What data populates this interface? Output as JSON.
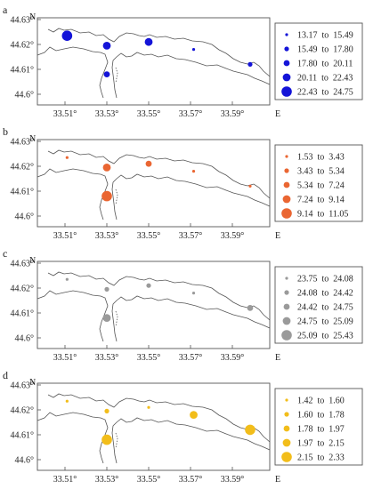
{
  "axes": {
    "north_label": "N",
    "east_label": "E",
    "x_ticks": [
      "33.51°",
      "33.53°",
      "33.55°",
      "33.57°",
      "33.59°"
    ],
    "y_ticks": [
      "44.63°",
      "44.62°",
      "44.61°",
      "44.6°"
    ]
  },
  "stations": [
    {
      "id": "s1",
      "lon": 33.511,
      "lat": 44.6235
    },
    {
      "id": "s2",
      "lon": 33.53,
      "lat": 44.6195
    },
    {
      "id": "s3",
      "lon": 33.53,
      "lat": 44.608
    },
    {
      "id": "s4",
      "lon": 33.55,
      "lat": 44.621
    },
    {
      "id": "s5",
      "lon": 33.5715,
      "lat": 44.618
    },
    {
      "id": "s6",
      "lon": 33.5985,
      "lat": 44.612
    }
  ],
  "panels": [
    {
      "label": "a",
      "color": "#1414d8",
      "legend": [
        "13.17  to  15.49",
        "15.49  to  17.80",
        "17.80  to  20.11",
        "20.11  to  22.43",
        "22.43  to  24.75"
      ],
      "station_class": [
        5,
        4,
        3,
        4,
        1,
        2
      ]
    },
    {
      "label": "b",
      "color": "#ea6632",
      "legend": [
        "1.53  to  3.43",
        "3.43  to  5.34",
        "5.34  to  7.24",
        "7.24  to  9.14",
        "9.14  to  11.05"
      ],
      "station_class": [
        1,
        4,
        5,
        3,
        1,
        1
      ]
    },
    {
      "label": "c",
      "color": "#9a9a9a",
      "legend": [
        "23.75  to  24.08",
        "24.08  to  24.42",
        "24.42  to  24.75",
        "24.75  to  25.09",
        "25.09  to  25.43"
      ],
      "station_class": [
        1,
        2,
        4,
        2,
        1,
        3
      ]
    },
    {
      "label": "d",
      "color": "#f2bd1a",
      "legend": [
        "1.42  to  1.60",
        "1.60  to  1.78",
        "1.78  to  1.97",
        "1.97  to  2.15",
        "2.15  to  2.33"
      ],
      "station_class": [
        1,
        2,
        5,
        1,
        4,
        5
      ]
    }
  ]
}
